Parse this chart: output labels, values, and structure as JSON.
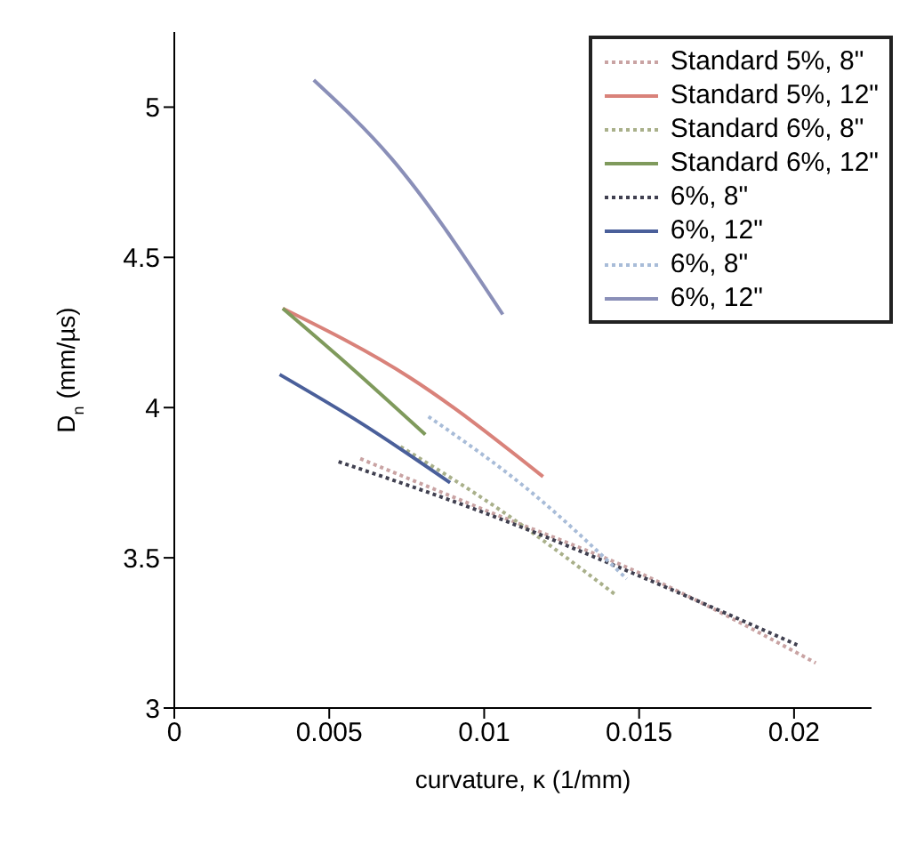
{
  "chart_data": {
    "type": "line",
    "xlabel": "curvature, κ  (1/mm)",
    "ylabel": "D$_{n}$  (mm/µs)",
    "xlim": [
      0,
      0.0225
    ],
    "xticks": [
      0,
      0.005,
      0.01,
      0.015,
      0.02
    ],
    "ylim": [
      3,
      5.25
    ],
    "yticks": [
      3,
      3.5,
      4,
      4.5,
      5
    ],
    "legend": "top right",
    "marker": "none",
    "series": [
      {
        "name": "Standard 5%, 8\"",
        "color": "#c9a3a3",
        "line_style": "dotted",
        "x": [
          0.006,
          0.01,
          0.015,
          0.0207
        ],
        "values": [
          3.83,
          3.66,
          3.45,
          3.15
        ]
      },
      {
        "name": "Standard 5%, 12\"",
        "color": "#d9827a",
        "line_style": "solid",
        "x": [
          0.0035,
          0.0076,
          0.0119
        ],
        "values": [
          4.33,
          4.1,
          3.77
        ]
      },
      {
        "name": "Standard 6%, 8\"",
        "color": "#a9b08a",
        "line_style": "dotted",
        "x": [
          0.0073,
          0.0105,
          0.0142
        ],
        "values": [
          3.87,
          3.66,
          3.38
        ]
      },
      {
        "name": "Standard 6%, 12\"",
        "color": "#7f9a5c",
        "line_style": "solid",
        "x": [
          0.0035,
          0.0053,
          0.0081
        ],
        "values": [
          4.33,
          4.17,
          3.91
        ]
      },
      {
        "name": "6%, 8\"",
        "color": "#404050",
        "line_style": "dotted",
        "x": [
          0.0053,
          0.01,
          0.015,
          0.0201
        ],
        "values": [
          3.82,
          3.65,
          3.44,
          3.21
        ]
      },
      {
        "name": "6%, 12\"",
        "color": "#4a5f9a",
        "line_style": "solid",
        "x": [
          0.0034,
          0.006,
          0.0089
        ],
        "values": [
          4.11,
          3.95,
          3.75
        ]
      },
      {
        "name": "6%, 8\"",
        "color": "#a8bcd8",
        "line_style": "dotted",
        "x": [
          0.0082,
          0.0115,
          0.0146
        ],
        "values": [
          3.97,
          3.72,
          3.43
        ]
      },
      {
        "name": "6%, 12\"",
        "color": "#8a8fb8",
        "line_style": "solid",
        "x": [
          0.0045,
          0.007,
          0.0106
        ],
        "values": [
          5.09,
          4.83,
          4.31
        ]
      }
    ]
  }
}
